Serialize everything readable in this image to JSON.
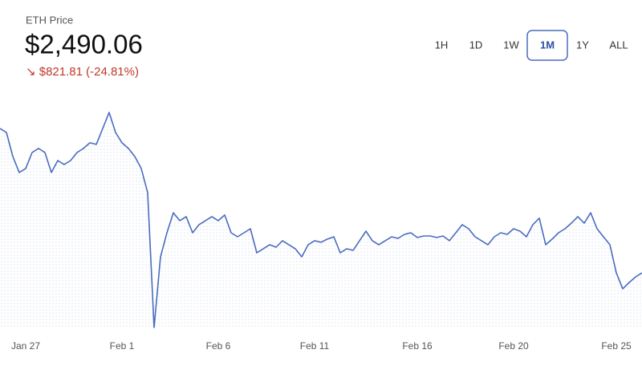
{
  "chart_data": {
    "type": "line",
    "title": "ETH Price",
    "price": "$2,490.06",
    "change": "↘ $821.81 (-24.81%)",
    "ranges": [
      "1H",
      "1D",
      "1W",
      "1M",
      "1Y",
      "ALL"
    ],
    "selected_range": "1M",
    "color": "#4a6bbf",
    "change_color": "#c0392b",
    "categories": [
      null,
      null,
      null,
      null,
      "Jan 27",
      null,
      null,
      null,
      null,
      null,
      null,
      null,
      null,
      null,
      null,
      null,
      null,
      null,
      null,
      "Feb 1",
      null,
      null,
      null,
      null,
      null,
      null,
      null,
      null,
      null,
      null,
      null,
      null,
      null,
      null,
      "Feb 6",
      null,
      null,
      null,
      null,
      null,
      null,
      null,
      null,
      null,
      null,
      null,
      null,
      null,
      null,
      "Feb 11",
      null,
      null,
      null,
      null,
      null,
      null,
      null,
      null,
      null,
      null,
      null,
      null,
      null,
      null,
      null,
      "Feb 16",
      null,
      null,
      null,
      null,
      null,
      null,
      null,
      null,
      null,
      null,
      null,
      null,
      null,
      null,
      "Feb 20",
      null,
      null,
      null,
      null,
      null,
      null,
      null,
      null,
      null,
      null,
      null,
      null,
      null,
      null,
      null,
      "Feb 25",
      null,
      null,
      null,
      null
    ],
    "values": [
      3312,
      3289,
      3152,
      3061,
      3084,
      3175,
      3198,
      3175,
      3061,
      3129,
      3107,
      3129,
      3175,
      3198,
      3230,
      3221,
      3312,
      3403,
      3289,
      3230,
      3198,
      3152,
      3084,
      2947,
      2179,
      2581,
      2718,
      2832,
      2787,
      2810,
      2718,
      2764,
      2787,
      2810,
      2787,
      2819,
      2718,
      2695,
      2718,
      2741,
      2604,
      2627,
      2650,
      2636,
      2673,
      2650,
      2627,
      2581,
      2650,
      2673,
      2664,
      2682,
      2695,
      2604,
      2627,
      2618,
      2673,
      2727,
      2673,
      2650,
      2673,
      2695,
      2686,
      2709,
      2718,
      2691,
      2700,
      2700,
      2691,
      2700,
      2673,
      2718,
      2764,
      2741,
      2695,
      2673,
      2650,
      2695,
      2718,
      2709,
      2741,
      2727,
      2695,
      2764,
      2801,
      2650,
      2682,
      2718,
      2741,
      2773,
      2810,
      2773,
      2832,
      2741,
      2695,
      2650,
      2490,
      2399,
      2435,
      2467,
      2490.06
    ],
    "ylim": [
      2179,
      3586
    ]
  }
}
